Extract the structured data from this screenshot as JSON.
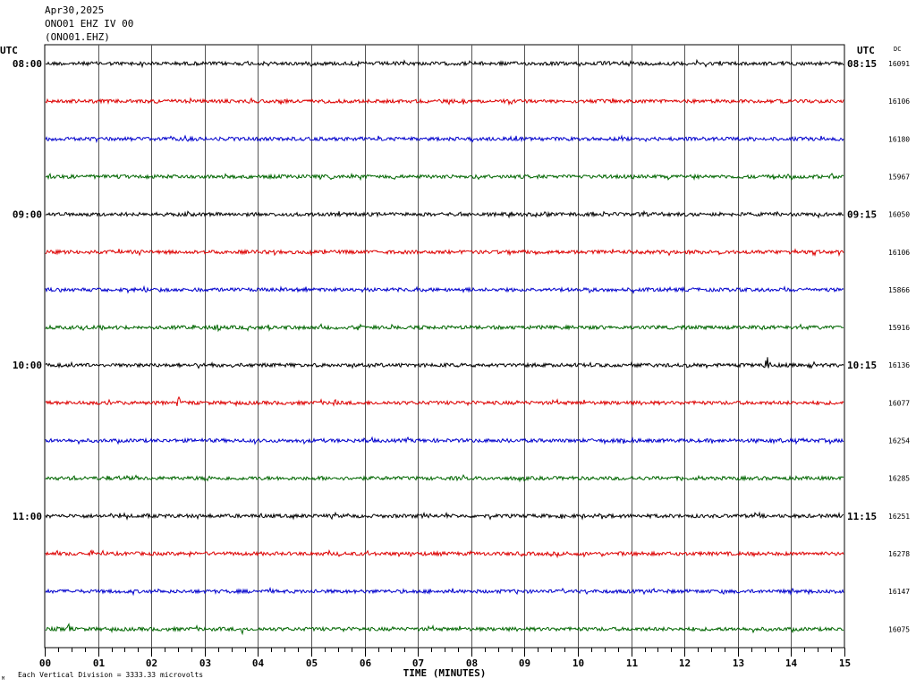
{
  "header": {
    "date": "Apr30,2025",
    "station": "ONO01 EHZ IV 00",
    "channel": "(ONO01.EHZ)"
  },
  "left_axis_label": "UTC",
  "right_axis_label": "UTC",
  "dc_label": "DC",
  "footer_note": "Each Vertical Division = 3333.33 microvolts",
  "corner_mark": "M",
  "chart_data": {
    "type": "line",
    "xlabel": "TIME (MINUTES)",
    "xlim": [
      0,
      15
    ],
    "x_ticks": [
      "00",
      "01",
      "02",
      "03",
      "04",
      "05",
      "06",
      "07",
      "08",
      "09",
      "10",
      "11",
      "12",
      "13",
      "14",
      "15"
    ],
    "line_colors": [
      "#000000",
      "#dd0000",
      "#0000cc",
      "#006600"
    ],
    "left_time_labels": [
      "08:00",
      "",
      "",
      "",
      "09:00",
      "",
      "",
      "",
      "10:00",
      "",
      "",
      "",
      "11:00",
      "",
      "",
      ""
    ],
    "right_time_labels": [
      "08:15",
      "",
      "",
      "",
      "09:15",
      "",
      "",
      "",
      "10:15",
      "",
      "",
      "",
      "11:15",
      "",
      "",
      ""
    ],
    "dc_values": [
      "16091",
      "16106",
      "16180",
      "15967",
      "16050",
      "16106",
      "15866",
      "15916",
      "16136",
      "16077",
      "16254",
      "16285",
      "16251",
      "16278",
      "16147",
      "16075"
    ],
    "events": [
      {
        "trace": 0,
        "minute": 11.0,
        "amp": 3
      },
      {
        "trace": 2,
        "minute": 1.6,
        "amp": 4
      },
      {
        "trace": 7,
        "minute": 3.25,
        "amp": 12
      },
      {
        "trace": 8,
        "minute": 13.55,
        "amp": 14
      },
      {
        "trace": 9,
        "minute": 2.5,
        "amp": 9
      },
      {
        "trace": 9,
        "minute": 5.45,
        "amp": 6
      },
      {
        "trace": 15,
        "minute": 0.45,
        "amp": 8
      },
      {
        "trace": 15,
        "minute": 3.7,
        "amp": 6
      }
    ]
  }
}
